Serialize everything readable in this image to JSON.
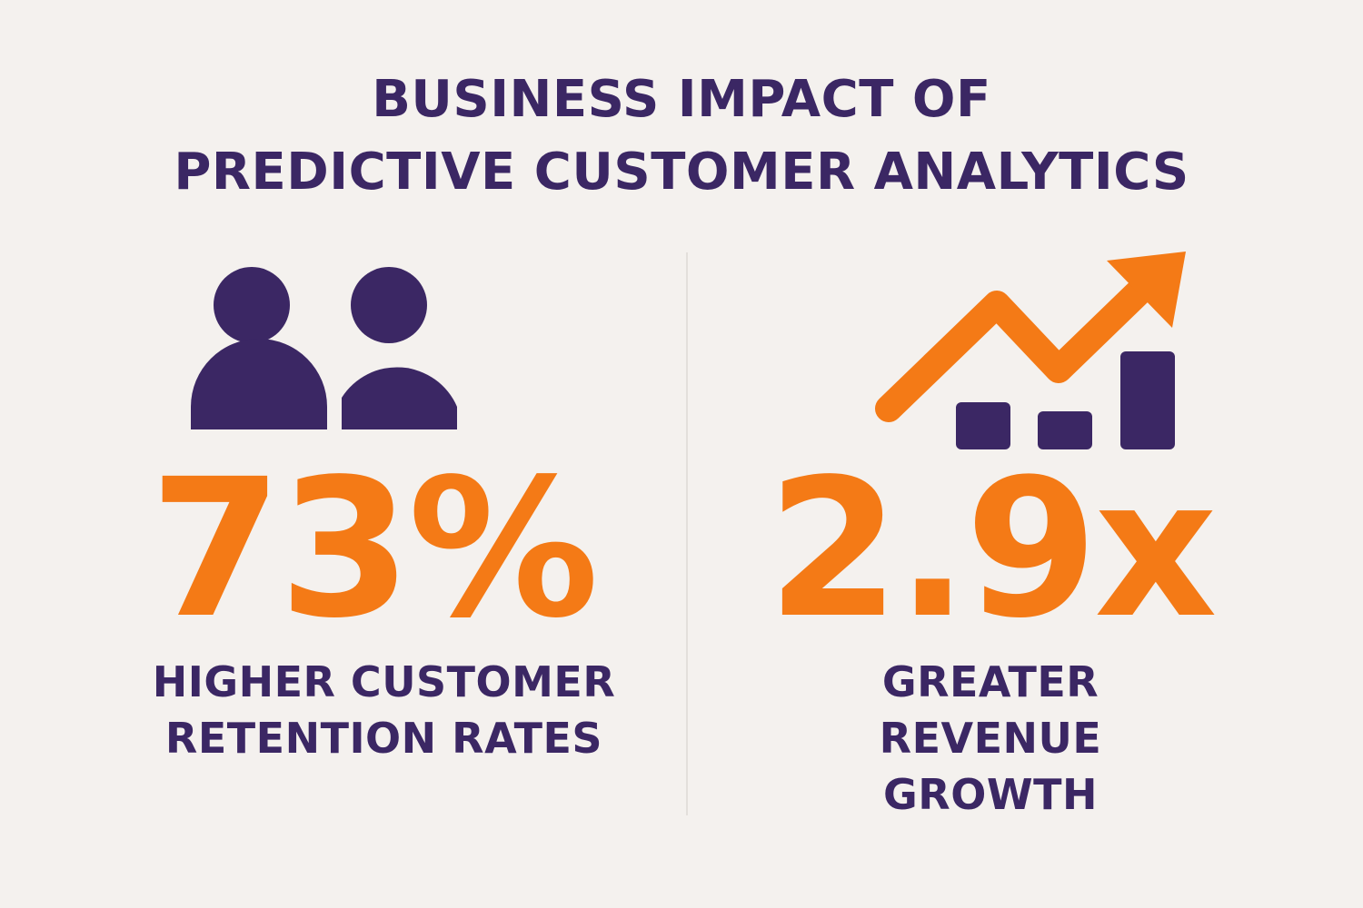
{
  "title": {
    "line1": "BUSINESS IMPACT OF",
    "line2": "PREDICTIVE CUSTOMER ANALYTICS"
  },
  "colors": {
    "background": "#f4f1ee",
    "primary": "#3b2764",
    "accent": "#f47a16"
  },
  "stats": {
    "retention": {
      "icon": "people-icon",
      "value": "73%",
      "caption_line1": "HIGHER CUSTOMER",
      "caption_line2": "RETENTION RATES"
    },
    "revenue": {
      "icon": "growth-chart-icon",
      "value": "2.9x",
      "caption_line1": "GREATER",
      "caption_line2": "REVENUE",
      "caption_line3": "GROWTH"
    }
  }
}
